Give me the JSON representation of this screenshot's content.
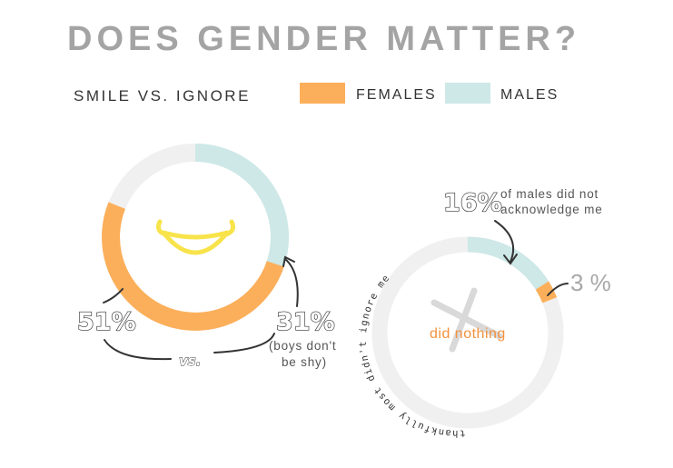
{
  "title": "DOES GENDER MATTER?",
  "subtitle": "SMILE VS. IGNORE",
  "legend": [
    {
      "label": "FEMALES",
      "color": "#fcaf5a"
    },
    {
      "label": "MALES",
      "color": "#cde8e7"
    }
  ],
  "colors": {
    "track": "#f0f0f0",
    "smile": "#f8e34a",
    "cross": "#d9d9d9"
  },
  "icons": [
    "smile-icon",
    "cross-icon"
  ],
  "chart_data": [
    {
      "type": "pie",
      "name": "smile",
      "series": [
        {
          "name": "FEMALES",
          "value": 51,
          "unit": "%",
          "label": "51%"
        },
        {
          "name": "MALES",
          "value": 31,
          "unit": "%",
          "label": "31%"
        }
      ],
      "annotations": {
        "vs": "vs.",
        "males_note_line1": "(boys don't",
        "males_note_line2": "be shy)"
      }
    },
    {
      "type": "pie",
      "name": "ignore",
      "series": [
        {
          "name": "MALES",
          "value": 16,
          "unit": "%",
          "label": "16%"
        },
        {
          "name": "FEMALES",
          "value": 3,
          "unit": "%",
          "label": "3 %"
        }
      ],
      "center_label": "did nothing",
      "annotations": {
        "males_note_line1": "of males did not",
        "males_note_line2": "acknowledge me",
        "arc_text": "thankfully most didn't ignore me"
      }
    }
  ]
}
